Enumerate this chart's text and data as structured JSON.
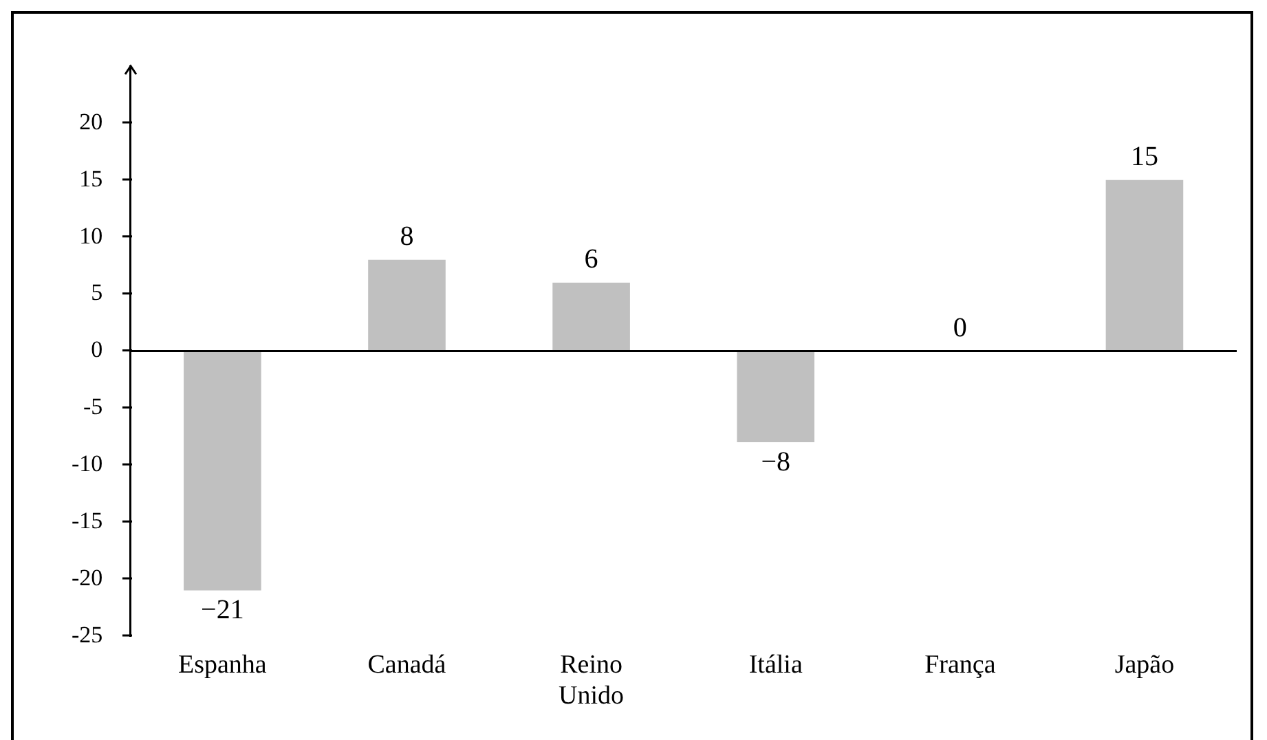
{
  "chart_data": {
    "type": "bar",
    "categories": [
      "Espanha",
      "Canadá",
      "Reino Unido",
      "Itália",
      "França",
      "Japão"
    ],
    "values": [
      -21,
      8,
      6,
      -8,
      0,
      15
    ],
    "value_labels": [
      "−21",
      "8",
      "6",
      "−8",
      "0",
      "15"
    ],
    "color": "#c0c0c0",
    "ylim": [
      -25,
      25
    ],
    "yticks": [
      {
        "value": -25,
        "label": "-25"
      },
      {
        "value": -20,
        "label": "-20"
      },
      {
        "value": -15,
        "label": "-15"
      },
      {
        "value": -10,
        "label": "-10"
      },
      {
        "value": -5,
        "label": "-5"
      },
      0,
      5,
      10,
      15,
      20
    ],
    "ref_lines": [
      {
        "axis": "y",
        "value": 0,
        "color": "#000000"
      }
    ],
    "grid": false,
    "legend": false
  }
}
